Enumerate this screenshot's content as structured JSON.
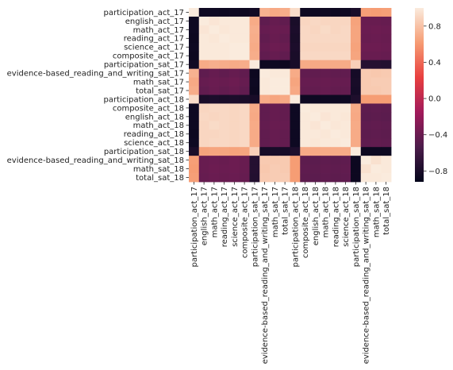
{
  "chart_data": {
    "type": "heatmap",
    "title": "",
    "xlabel": "",
    "ylabel": "",
    "labels": [
      "participation_act_17",
      "english_act_17",
      "math_act_17",
      "reading_act_17",
      "science_act_17",
      "composite_act_17",
      "participation_sat_17",
      "evidence-based_reading_and_writing_sat_17",
      "math_sat_17",
      "total_sat_17",
      "participation_act_18",
      "composite_act_18",
      "english_act_18",
      "math_act_18",
      "reading_act_18",
      "science_act_18",
      "participation_sat_18",
      "evidence-based_reading_and_writing_sat_18",
      "math_sat_18",
      "total_sat_18"
    ],
    "values": [
      [
        1.0,
        -0.86,
        -0.86,
        -0.87,
        -0.86,
        -0.87,
        -0.84,
        0.72,
        0.68,
        0.7,
        0.93,
        -0.86,
        -0.86,
        -0.86,
        -0.87,
        -0.86,
        -0.8,
        0.63,
        0.62,
        0.63
      ],
      [
        -0.86,
        1.0,
        0.97,
        0.99,
        0.99,
        0.99,
        0.69,
        -0.45,
        -0.42,
        -0.44,
        -0.8,
        0.9,
        0.91,
        0.9,
        0.9,
        0.9,
        0.65,
        -0.41,
        -0.41,
        -0.42
      ],
      [
        -0.86,
        0.97,
        1.0,
        0.98,
        0.99,
        0.99,
        0.71,
        -0.42,
        -0.4,
        -0.41,
        -0.79,
        0.91,
        0.9,
        0.92,
        0.9,
        0.91,
        0.66,
        -0.4,
        -0.39,
        -0.4
      ],
      [
        -0.87,
        0.99,
        0.98,
        1.0,
        0.99,
        0.99,
        0.7,
        -0.44,
        -0.41,
        -0.43,
        -0.8,
        0.91,
        0.91,
        0.91,
        0.91,
        0.91,
        0.66,
        -0.41,
        -0.4,
        -0.41
      ],
      [
        -0.86,
        0.99,
        0.99,
        0.99,
        1.0,
        1.0,
        0.69,
        -0.42,
        -0.39,
        -0.41,
        -0.79,
        0.9,
        0.9,
        0.9,
        0.9,
        0.9,
        0.65,
        -0.39,
        -0.39,
        -0.4
      ],
      [
        -0.87,
        0.99,
        0.99,
        0.99,
        1.0,
        1.0,
        0.7,
        -0.44,
        -0.42,
        -0.44,
        -0.8,
        0.91,
        0.91,
        0.91,
        0.91,
        0.91,
        0.66,
        -0.41,
        -0.41,
        -0.42
      ],
      [
        -0.84,
        0.69,
        0.71,
        0.7,
        0.69,
        0.7,
        1.0,
        -0.87,
        -0.86,
        -0.87,
        -0.81,
        0.69,
        0.68,
        0.69,
        0.69,
        0.69,
        0.87,
        -0.74,
        -0.74,
        -0.75
      ],
      [
        0.72,
        -0.45,
        -0.42,
        -0.44,
        -0.42,
        -0.44,
        -0.87,
        1.0,
        0.99,
        0.99,
        0.69,
        -0.44,
        -0.44,
        -0.43,
        -0.44,
        -0.44,
        -0.82,
        0.84,
        0.83,
        0.84
      ],
      [
        0.68,
        -0.42,
        -0.4,
        -0.41,
        -0.39,
        -0.42,
        -0.86,
        0.99,
        1.0,
        1.0,
        0.66,
        -0.42,
        -0.42,
        -0.41,
        -0.42,
        -0.42,
        -0.81,
        0.84,
        0.85,
        0.85
      ],
      [
        0.7,
        -0.44,
        -0.41,
        -0.43,
        -0.41,
        -0.44,
        -0.87,
        0.99,
        1.0,
        1.0,
        0.68,
        -0.43,
        -0.43,
        -0.42,
        -0.43,
        -0.43,
        -0.82,
        0.84,
        0.84,
        0.85
      ],
      [
        0.93,
        -0.8,
        -0.79,
        -0.8,
        -0.79,
        -0.8,
        -0.81,
        0.69,
        0.66,
        0.68,
        1.0,
        -0.86,
        -0.86,
        -0.86,
        -0.86,
        -0.86,
        -0.78,
        0.62,
        0.62,
        0.62
      ],
      [
        -0.86,
        0.9,
        0.91,
        0.91,
        0.9,
        0.91,
        0.69,
        -0.44,
        -0.42,
        -0.43,
        -0.86,
        1.0,
        0.99,
        0.99,
        0.99,
        0.99,
        0.69,
        -0.46,
        -0.45,
        -0.46
      ],
      [
        -0.86,
        0.91,
        0.9,
        0.91,
        0.9,
        0.91,
        0.68,
        -0.44,
        -0.42,
        -0.43,
        -0.86,
        0.99,
        1.0,
        0.97,
        0.99,
        0.98,
        0.68,
        -0.47,
        -0.46,
        -0.47
      ],
      [
        -0.86,
        0.9,
        0.92,
        0.91,
        0.9,
        0.91,
        0.69,
        -0.43,
        -0.41,
        -0.42,
        -0.86,
        0.99,
        0.97,
        1.0,
        0.98,
        0.99,
        0.69,
        -0.45,
        -0.44,
        -0.45
      ],
      [
        -0.87,
        0.9,
        0.9,
        0.91,
        0.9,
        0.91,
        0.69,
        -0.44,
        -0.42,
        -0.43,
        -0.86,
        0.99,
        0.99,
        0.98,
        1.0,
        0.99,
        0.69,
        -0.46,
        -0.45,
        -0.46
      ],
      [
        -0.86,
        0.9,
        0.91,
        0.91,
        0.9,
        0.91,
        0.69,
        -0.44,
        -0.42,
        -0.43,
        -0.86,
        0.99,
        0.98,
        0.99,
        0.99,
        1.0,
        0.69,
        -0.45,
        -0.44,
        -0.45
      ],
      [
        -0.8,
        0.65,
        0.66,
        0.66,
        0.65,
        0.66,
        0.87,
        -0.82,
        -0.81,
        -0.82,
        -0.78,
        0.69,
        0.68,
        0.69,
        0.69,
        0.69,
        1.0,
        -0.87,
        -0.87,
        -0.87
      ],
      [
        0.63,
        -0.41,
        -0.4,
        -0.41,
        -0.39,
        -0.41,
        -0.74,
        0.84,
        0.84,
        0.84,
        0.62,
        -0.46,
        -0.47,
        -0.45,
        -0.46,
        -0.45,
        -0.87,
        1.0,
        0.95,
        0.99
      ],
      [
        0.62,
        -0.41,
        -0.39,
        -0.4,
        -0.39,
        -0.41,
        -0.74,
        0.83,
        0.85,
        0.84,
        0.62,
        -0.45,
        -0.46,
        -0.44,
        -0.45,
        -0.44,
        -0.87,
        0.95,
        1.0,
        0.99
      ],
      [
        0.63,
        -0.42,
        -0.4,
        -0.41,
        -0.4,
        -0.42,
        -0.75,
        0.84,
        0.85,
        0.85,
        0.62,
        -0.46,
        -0.47,
        -0.45,
        -0.46,
        -0.45,
        -0.87,
        0.99,
        0.99,
        1.0
      ]
    ],
    "colorbar": {
      "vmin": -0.92,
      "vmax": 1.0,
      "ticks": [
        {
          "value": 0.8,
          "label": "0.8"
        },
        {
          "value": 0.4,
          "label": "0.4"
        },
        {
          "value": 0.0,
          "label": "0.0"
        },
        {
          "value": -0.4,
          "label": "−0.4"
        },
        {
          "value": -0.8,
          "label": "−0.8"
        }
      ]
    },
    "colormap": "rocket",
    "colormap_stops": [
      "#03051a",
      "#4c1d4b",
      "#a11a5b",
      "#e83f3f",
      "#f69c73",
      "#faebdd"
    ],
    "grid": false,
    "legend": "none"
  }
}
